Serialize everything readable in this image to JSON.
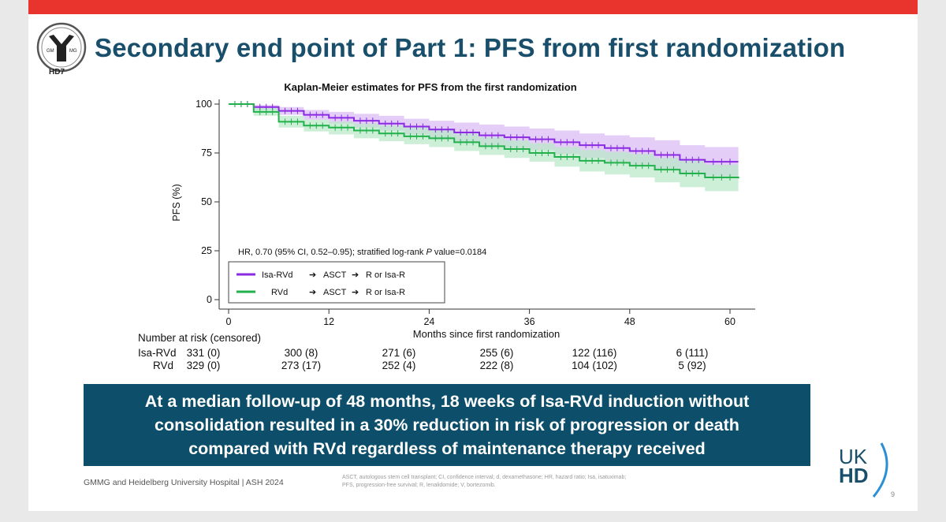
{
  "slide": {
    "title": "Secondary end point of Part 1: PFS from first randomization",
    "logo_text": "HD7",
    "logo_ring_left": "GM",
    "logo_ring_right": "MG",
    "banner_lines": [
      "At a median follow-up of 48 months, 18 weeks of Isa-RVd induction without",
      "consolidation resulted in a 30% reduction in risk of progression or death",
      "compared with RVd regardless of maintenance therapy received"
    ],
    "footer": "GMMG and Heidelberg University Hospital | ASH 2024",
    "footnote_lines": [
      "ASCT, autologous stem cell transplant; CI, confidence interval; d, dexamethasone; HR, hazard ratio; Isa, isatuximab;",
      "PFS, progression-free survival; R, lenalidomide; V, bortezomib."
    ],
    "brand_top": "UK",
    "brand_bottom": "HD",
    "page_number": "9",
    "colors": {
      "topbar": "#e8342c",
      "title": "#1a4f6b",
      "banner": "#0d4f6a",
      "isa_rvd": "#8a2be2",
      "rvd": "#22b14c"
    }
  },
  "risk_table": {
    "heading": "Number at risk (censored)",
    "rows": [
      {
        "label": "Isa-RVd",
        "values": [
          "331 (0)",
          "300 (8)",
          "271 (6)",
          "255 (6)",
          "122 (116)",
          "6 (111)"
        ]
      },
      {
        "label": "RVd",
        "values": [
          "329 (0)",
          "273 (17)",
          "252 (4)",
          "222 (8)",
          "104 (102)",
          "5 (92)"
        ]
      }
    ]
  },
  "chart_data": {
    "type": "line",
    "title": "Kaplan-Meier estimates for PFS from the first randomization",
    "xlabel": "Months since first randomization",
    "ylabel": "PFS (%)",
    "xlim": [
      0,
      60
    ],
    "ylim": [
      0,
      100
    ],
    "xticks": [
      0,
      12,
      24,
      36,
      48,
      60
    ],
    "yticks": [
      0,
      25,
      50,
      75,
      100
    ],
    "annotation": "HR, 0.70 (95% CI, 0.52–0.95); stratified log-rank P value=0.0184",
    "annotation_parts": [
      "HR, 0.70 (95% CI, 0.52–0.95); stratified log-rank ",
      "P",
      " value=0.0184"
    ],
    "legend_position": "bottom-left",
    "series": [
      {
        "name": "Isa-RVd",
        "legend": [
          "Isa-RVd",
          "ASCT",
          "R or Isa-R"
        ],
        "color": "#8a2be2",
        "band_color": "#d9b8f2",
        "x": [
          0,
          3,
          6,
          9,
          12,
          15,
          18,
          21,
          24,
          27,
          30,
          33,
          36,
          39,
          42,
          45,
          48,
          51,
          54,
          57,
          61
        ],
        "y": [
          100,
          98.5,
          96.5,
          94.5,
          93,
          91.5,
          90,
          88.5,
          87,
          85.5,
          84,
          83,
          82,
          80.5,
          79,
          77.5,
          76,
          74,
          71.5,
          70.5,
          70.5
        ],
        "ci_low": [
          100,
          97,
          94.5,
          92,
          90,
          88,
          86.5,
          84.5,
          82.5,
          80.5,
          79,
          77.5,
          76.5,
          74.5,
          72.5,
          70.5,
          69,
          66.5,
          64,
          63,
          63
        ],
        "ci_high": [
          100,
          99.5,
          98.5,
          97,
          96,
          95,
          94,
          92.5,
          91.5,
          90.5,
          89.5,
          88.5,
          87.5,
          86.5,
          85,
          84,
          83,
          81.5,
          79,
          78,
          78
        ]
      },
      {
        "name": "RVd",
        "legend": [
          "RVd",
          "ASCT",
          "R or Isa-R"
        ],
        "color": "#22b14c",
        "band_color": "#b8e8c6",
        "x": [
          0,
          3,
          6,
          9,
          12,
          15,
          18,
          21,
          24,
          27,
          30,
          33,
          36,
          39,
          42,
          45,
          48,
          51,
          54,
          57,
          61
        ],
        "y": [
          100,
          96,
          91,
          89,
          88,
          86.5,
          85,
          83.5,
          82.5,
          80.5,
          78.5,
          77,
          75,
          73,
          71,
          70,
          68.5,
          66.5,
          64.5,
          62.5,
          62
        ],
        "ci_low": [
          100,
          94,
          88,
          86,
          84.5,
          82.5,
          81,
          79.5,
          78,
          76,
          74,
          72.5,
          70.5,
          68,
          65.5,
          64,
          62.5,
          60,
          57.5,
          55.5,
          55
        ],
        "ci_high": [
          100,
          98,
          94,
          92,
          91,
          90,
          89,
          88,
          87,
          85,
          83,
          81.5,
          80,
          78,
          76.5,
          75.5,
          74.5,
          72.5,
          71,
          69,
          69
        ]
      }
    ]
  }
}
